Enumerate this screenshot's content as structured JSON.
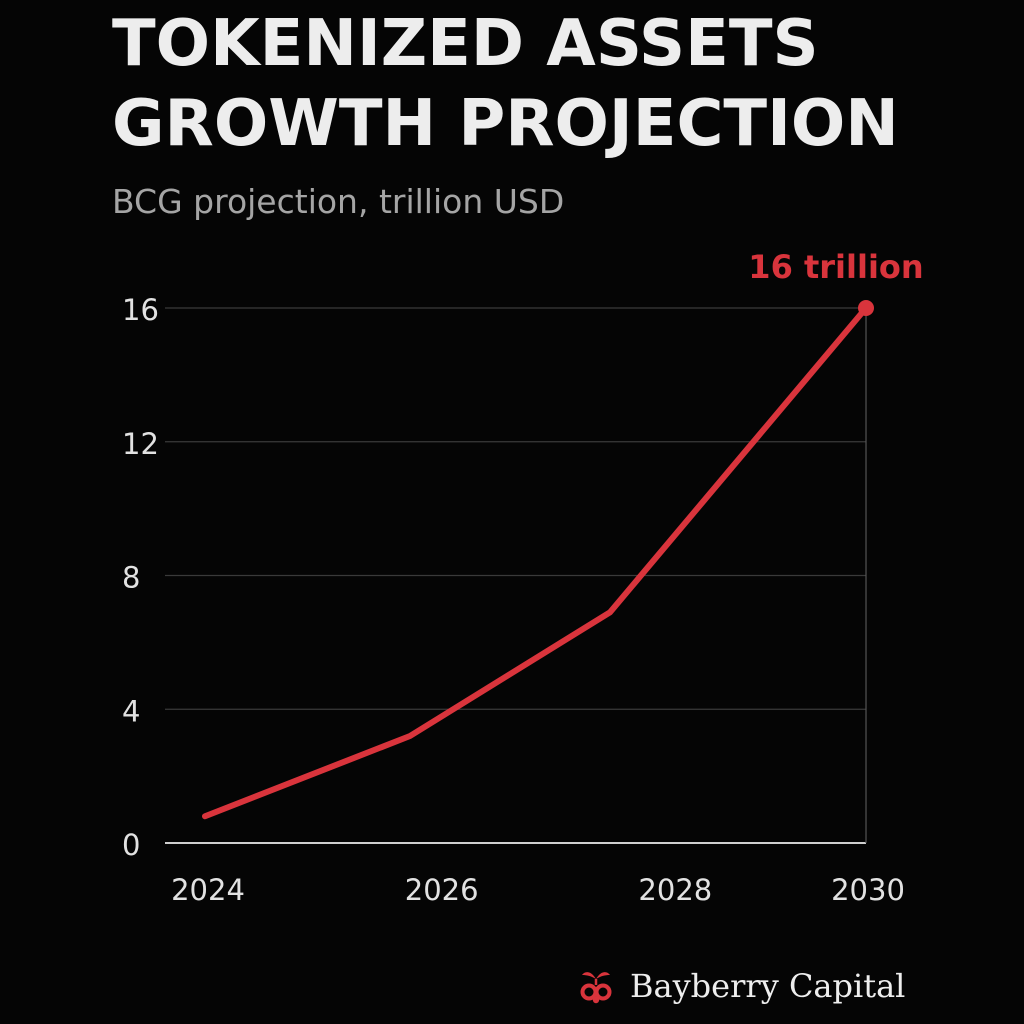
{
  "header": {
    "title_line1": "TOKENIZED ASSETS",
    "title_line2": "GROWTH PROJECTION",
    "subtitle": "BCG projection, trillion USD"
  },
  "chart_data": {
    "type": "line",
    "title": "TOKENIZED ASSETS GROWTH PROJECTION",
    "subtitle": "BCG projection, trillion USD",
    "xlabel": "",
    "ylabel": "",
    "x": [
      2024,
      2026,
      2028,
      2030
    ],
    "x_ticks": [
      "2024",
      "2026",
      "2028",
      "2030"
    ],
    "y_ticks": [
      "0",
      "4",
      "8",
      "12",
      "16"
    ],
    "ylim": [
      0,
      16
    ],
    "xlim": [
      2024,
      2030
    ],
    "grid": true,
    "series": [
      {
        "values": [
          0.8,
          3.2,
          6.9,
          16
        ],
        "color": "#d9343c"
      }
    ],
    "annotations": [
      {
        "text": "16 trillion",
        "x": 2030,
        "y": 16
      }
    ]
  },
  "colors": {
    "background": "#050505",
    "accent": "#d9343c",
    "grid": "#3a3a3a",
    "axis_text": "#e2e2e2",
    "subtitle_text": "#a5a5a5"
  },
  "branding": {
    "name": "Bayberry Capital",
    "logo_icon": "bayberry-leaf-logo-icon"
  }
}
